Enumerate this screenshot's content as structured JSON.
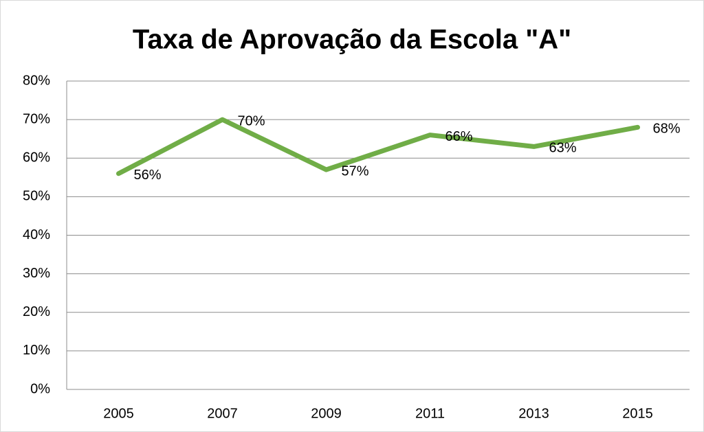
{
  "chart_data": {
    "type": "line",
    "title": "Taxa de Aprovação da Escola \"A\"",
    "categories": [
      "2005",
      "2007",
      "2009",
      "2011",
      "2013",
      "2015"
    ],
    "series": [
      {
        "name": "Taxa de Aprovação",
        "color": "#70ad47",
        "values": [
          56,
          70,
          57,
          66,
          63,
          68
        ],
        "value_labels": [
          "56%",
          "70%",
          "57%",
          "66%",
          "63%",
          "68%"
        ]
      }
    ],
    "ylim": [
      0,
      80
    ],
    "yticks": [
      {
        "value": 0,
        "label": "0%"
      },
      {
        "value": 10,
        "label": "10%"
      },
      {
        "value": 20,
        "label": "20%"
      },
      {
        "value": 30,
        "label": "30%"
      },
      {
        "value": 40,
        "label": "40%"
      },
      {
        "value": 50,
        "label": "50%"
      },
      {
        "value": 60,
        "label": "60%"
      },
      {
        "value": 70,
        "label": "70%"
      },
      {
        "value": 80,
        "label": "80%"
      }
    ],
    "grid": true
  }
}
